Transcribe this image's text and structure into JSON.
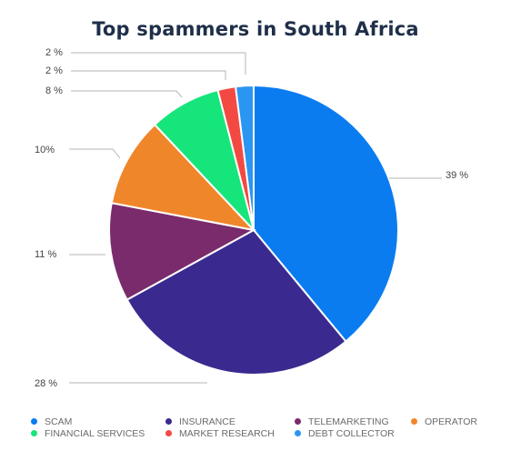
{
  "chart_data": {
    "type": "pie",
    "title": "Top spammers in South Africa",
    "slices": [
      {
        "name": "SCAM",
        "value": 39,
        "label": "39 %",
        "color": "#0a7cf0"
      },
      {
        "name": "INSURANCE",
        "value": 28,
        "label": "28 %",
        "color": "#3a2a8f"
      },
      {
        "name": "TELEMARKETING",
        "value": 11,
        "label": "11 %",
        "color": "#7a2b6b"
      },
      {
        "name": "OPERATOR",
        "value": 10,
        "label": "10%",
        "color": "#f0862a"
      },
      {
        "name": "FINANCIAL SERVICES",
        "value": 8,
        "label": "8 %",
        "color": "#16e57c"
      },
      {
        "name": "MARKET RESEARCH",
        "value": 2,
        "label": "2 %",
        "color": "#f24a43"
      },
      {
        "name": "DEBT COLLECTOR",
        "value": 2,
        "label": "2 %",
        "color": "#2b96f2"
      }
    ],
    "legend_position": "bottom"
  }
}
